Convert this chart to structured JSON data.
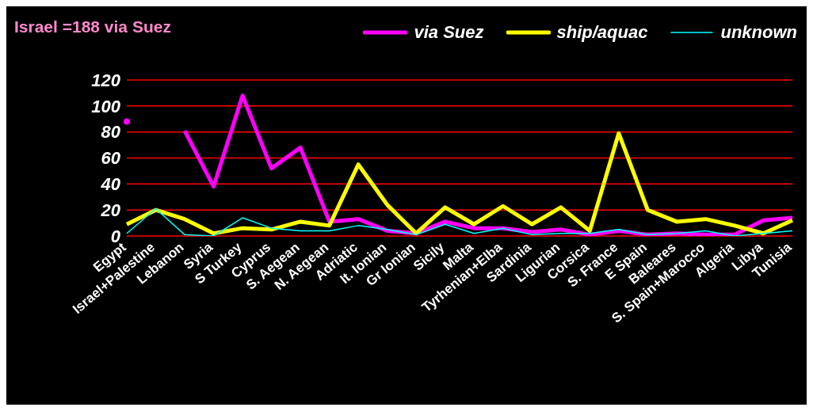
{
  "chart_data": {
    "type": "line",
    "title": "Israel =188 via Suez",
    "categories": [
      "Egypt",
      "Israel+Palestine",
      "Lebanon",
      "Syria",
      "S Turkey",
      "Cyprus",
      "S. Aegean",
      "N. Aegean",
      "Adriatic",
      "It. Ionian",
      "Gr Ionian",
      "Sicily",
      "Malta",
      "Tyrhenian+Elba",
      "Sardinia",
      "Ligurian",
      "Corsica",
      "S. France",
      "E Spain",
      "Baleares",
      "S. Spain+Marocco",
      "Algeria",
      "Libya",
      "Tunisia"
    ],
    "series": [
      {
        "name": "via Suez",
        "color": "#ff00ff",
        "values": [
          88,
          null,
          81,
          38,
          108,
          52,
          68,
          11,
          13,
          4,
          2,
          11,
          6,
          6,
          3,
          5,
          1,
          4,
          1,
          2,
          1,
          1,
          12,
          14
        ]
      },
      {
        "name": "ship/aquac",
        "color": "#ffff00",
        "values": [
          9,
          20,
          13,
          2,
          6,
          5,
          11,
          8,
          55,
          24,
          2,
          22,
          9,
          23,
          9,
          22,
          4,
          79,
          20,
          11,
          13,
          8,
          2,
          12
        ]
      },
      {
        "name": "unknown",
        "color": "#00ffff",
        "values": [
          2,
          21,
          1,
          0,
          14,
          6,
          4,
          4,
          8,
          5,
          1,
          9,
          2,
          6,
          1,
          2,
          2,
          5,
          1,
          2,
          4,
          0,
          2,
          4
        ]
      }
    ],
    "ylim": [
      0,
      120
    ],
    "yticks": [
      0,
      20,
      40,
      60,
      80,
      100,
      120
    ],
    "grid": "y",
    "legend": "top right",
    "marker": "none",
    "line_style": "solid"
  }
}
